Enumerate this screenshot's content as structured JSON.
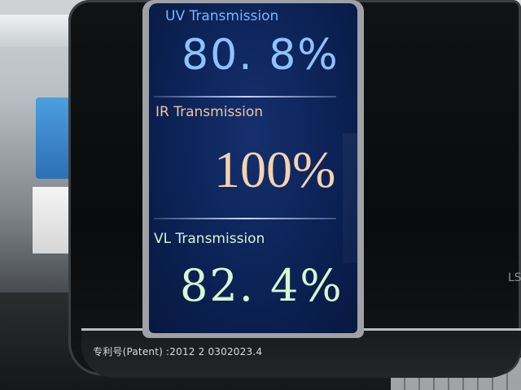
{
  "colors": {
    "screen_background": "#0c2256",
    "uv_color": "#8ec2ff",
    "ir_color": "#f6d2b2",
    "vl_color": "#d8f7d2",
    "device_body": "#0a0b0c"
  },
  "display": {
    "uv": {
      "label": "UV Transmission",
      "value": "80. 8%"
    },
    "ir": {
      "label": "IR Transmission",
      "value": "100%"
    },
    "vl": {
      "label": "VL Transmission",
      "value": "82. 4%"
    }
  },
  "device": {
    "patent_text": "专利号(Patent) :2012 2 0302023.4",
    "side_text": "LS"
  }
}
